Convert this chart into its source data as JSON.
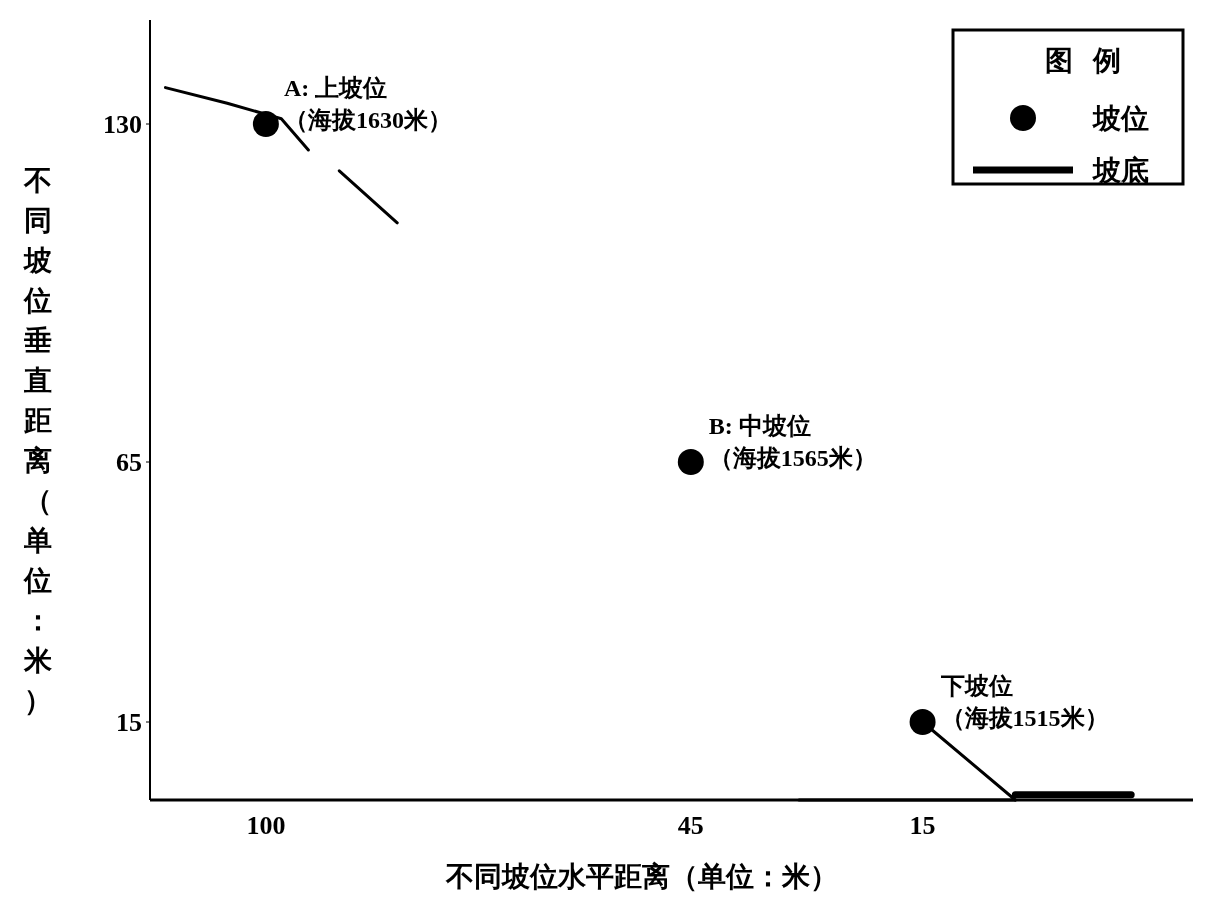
{
  "chart_data": {
    "type": "scatter",
    "xlabel": "不同坡位水平距离（单位：米）",
    "ylabel": "不同坡位垂直距离（单位：米）",
    "legend_title": "图例",
    "xlim": [
      115,
      -20
    ],
    "xticks": [
      100,
      45,
      15
    ],
    "ylim": [
      0,
      150
    ],
    "yticks": [
      130,
      65,
      15
    ],
    "grid": false,
    "legend": "top right",
    "series": [
      {
        "name": "坡位",
        "color": "#000000",
        "marker": "circle",
        "x": [
          100,
          45,
          15
        ],
        "values": [
          130,
          65,
          15
        ]
      },
      {
        "type": "line",
        "color": "#000000",
        "x": [
          113,
          105,
          98,
          94.5,
          92,
          90.5,
          83
        ],
        "values": [
          137,
          134,
          131,
          125,
          null,
          121,
          111
        ]
      },
      {
        "type": "line",
        "color": "#000000",
        "x": [
          15,
          3
        ],
        "values": [
          15,
          0
        ]
      },
      {
        "type": "line",
        "color": "#000000",
        "x": [
          31,
          3
        ],
        "values": [
          0,
          0
        ]
      },
      {
        "type": "line",
        "name": "坡底",
        "color": "#000000",
        "x": [
          3,
          -12
        ],
        "values": [
          1,
          1
        ]
      }
    ],
    "annotations": [
      {
        "text": "A: 上坡位（海拔1630米）",
        "x": 100,
        "y": 130
      },
      {
        "text": "B: 中坡位（海拔1565米）",
        "x": 45,
        "y": 65
      },
      {
        "text": "下坡位（海拔1515米）",
        "x": 15,
        "y": 15
      }
    ]
  }
}
